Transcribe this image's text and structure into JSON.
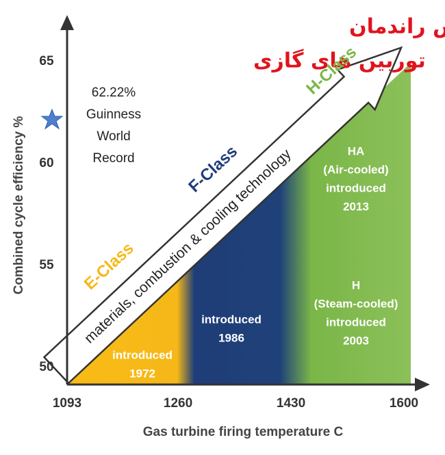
{
  "title": [
    "راهکارهای افزایش راندمان",
    "توربین های گازی"
  ],
  "y_axis": {
    "label": "Combined cycle  efficiency %",
    "ticks": [
      50,
      55,
      60,
      65
    ]
  },
  "x_axis": {
    "label": "Gas turbine firing temperature C",
    "ticks": [
      1093,
      1260,
      1430,
      1600
    ]
  },
  "arrow_text": "materials, combustion & cooling technology",
  "record": [
    "62.22%",
    "Guinness",
    "World",
    "Record"
  ],
  "classes": [
    {
      "name": "E-Class",
      "notes": [
        [
          "introduced",
          "1972"
        ]
      ]
    },
    {
      "name": "F-Class",
      "notes": [
        [
          "introduced",
          "1986"
        ]
      ]
    },
    {
      "name": "H-Class",
      "notes": [
        [
          "HA",
          "(Air-cooled)",
          "introduced",
          "2013"
        ],
        [
          "H",
          "(Steam-cooled)",
          "introduced",
          "2003"
        ]
      ]
    }
  ]
}
